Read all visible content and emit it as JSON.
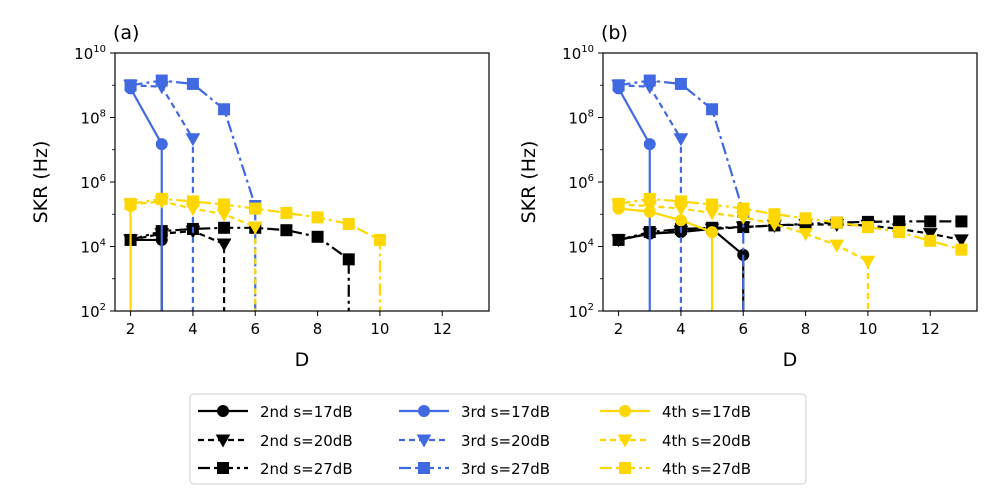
{
  "chart_data": {
    "type": "line",
    "xlabel": "D",
    "ylabel": "SKR (Hz)",
    "yscale": "log",
    "ylim": [
      100,
      10000000000
    ],
    "xlim": [
      1.5,
      13.5
    ],
    "xticks": [
      2,
      4,
      6,
      8,
      10,
      12
    ],
    "yticks": [
      {
        "base": "10",
        "exp": "2",
        "value": 100
      },
      {
        "base": "10",
        "exp": "4",
        "value": 10000
      },
      {
        "base": "10",
        "exp": "6",
        "value": 1000000
      },
      {
        "base": "10",
        "exp": "8",
        "value": 100000000
      },
      {
        "base": "10",
        "exp": "10",
        "value": 10000000000
      }
    ],
    "colors": {
      "2nd": "#000000",
      "3rd": "#4169e1",
      "4th": "#ffd700"
    },
    "styles": {
      "17dB": {
        "dash": "",
        "marker": "circle"
      },
      "20dB": {
        "dash": "6,4",
        "marker": "triangle-down"
      },
      "27dB": {
        "dash": "12,4,3,4",
        "marker": "square"
      }
    },
    "legend": {
      "placement": "bottom-center",
      "entries": [
        {
          "label": "2nd s=17dB",
          "color": "2nd",
          "style": "17dB"
        },
        {
          "label": "2nd s=20dB",
          "color": "2nd",
          "style": "20dB"
        },
        {
          "label": "2nd s=27dB",
          "color": "2nd",
          "style": "27dB"
        },
        {
          "label": "3rd s=17dB",
          "color": "3rd",
          "style": "17dB"
        },
        {
          "label": "3rd s=20dB",
          "color": "3rd",
          "style": "20dB"
        },
        {
          "label": "3rd s=27dB",
          "color": "3rd",
          "style": "27dB"
        },
        {
          "label": "4th s=17dB",
          "color": "4th",
          "style": "17dB"
        },
        {
          "label": "4th s=20dB",
          "color": "4th",
          "style": "20dB"
        },
        {
          "label": "4th s=27dB",
          "color": "4th",
          "style": "27dB"
        }
      ]
    },
    "panels": [
      {
        "label": "(a)",
        "series": [
          {
            "name": "2nd s=17dB",
            "color": "2nd",
            "style": "17dB",
            "x": [
              2,
              3
            ],
            "y": [
              16000,
              16000
            ],
            "drop_to_floor": true
          },
          {
            "name": "2nd s=20dB",
            "color": "2nd",
            "style": "20dB",
            "x": [
              2,
              3,
              4,
              5
            ],
            "y": [
              16000,
              25000,
              30000,
              12000
            ],
            "drop_to_floor": true
          },
          {
            "name": "2nd s=27dB",
            "color": "2nd",
            "style": "27dB",
            "x": [
              2,
              3,
              4,
              5,
              6,
              7,
              8,
              9
            ],
            "y": [
              16000,
              30000,
              35000,
              38000,
              38000,
              32000,
              20000,
              4000
            ],
            "drop_to_floor": true
          },
          {
            "name": "3rd s=17dB",
            "color": "3rd",
            "style": "17dB",
            "x": [
              2,
              3
            ],
            "y": [
              800000000,
              15000000
            ],
            "drop_to_floor": true
          },
          {
            "name": "3rd s=20dB",
            "color": "3rd",
            "style": "20dB",
            "x": [
              2,
              3,
              4
            ],
            "y": [
              1000000000,
              900000000,
              22000000
            ],
            "drop_to_floor": true
          },
          {
            "name": "3rd s=27dB",
            "color": "3rd",
            "style": "27dB",
            "x": [
              2,
              3,
              4,
              5,
              6
            ],
            "y": [
              1000000000,
              1400000000,
              1100000000,
              180000000,
              180000
            ],
            "drop_to_floor": true
          },
          {
            "name": "4th s=17dB",
            "color": "4th",
            "style": "17dB",
            "x": [
              2
            ],
            "y": [
              180000
            ],
            "drop_to_floor": true
          },
          {
            "name": "4th s=20dB",
            "color": "4th",
            "style": "20dB",
            "x": [
              2,
              3,
              4,
              5,
              6
            ],
            "y": [
              200000,
              250000,
              150000,
              100000,
              40000
            ],
            "drop_to_floor": true
          },
          {
            "name": "4th s=27dB",
            "color": "4th",
            "style": "27dB",
            "x": [
              2,
              3,
              4,
              5,
              6,
              7,
              8,
              9,
              10
            ],
            "y": [
              210000,
              300000,
              250000,
              200000,
              150000,
              110000,
              80000,
              50000,
              16000
            ],
            "drop_to_floor": true
          }
        ]
      },
      {
        "label": "(b)",
        "series": [
          {
            "name": "2nd s=17dB",
            "color": "2nd",
            "style": "17dB",
            "x": [
              2,
              3,
              4,
              5,
              6
            ],
            "y": [
              16000,
              25000,
              28000,
              35000,
              5500
            ],
            "drop_to_floor": true
          },
          {
            "name": "2nd s=20dB",
            "color": "2nd",
            "style": "20dB",
            "x": [
              2,
              3,
              4,
              5,
              6,
              7,
              8,
              9,
              10,
              11,
              12,
              13
            ],
            "y": [
              16000,
              25000,
              30000,
              35000,
              40000,
              45000,
              48000,
              48000,
              45000,
              35000,
              25000,
              16000
            ],
            "drop_to_floor": false
          },
          {
            "name": "2nd s=27dB",
            "color": "2nd",
            "style": "27dB",
            "x": [
              2,
              3,
              4,
              5,
              6,
              7,
              8,
              9,
              10,
              11,
              12,
              13
            ],
            "y": [
              16000,
              28000,
              35000,
              38000,
              40000,
              45000,
              50000,
              55000,
              58000,
              60000,
              60000,
              60000
            ],
            "drop_to_floor": false
          },
          {
            "name": "3rd s=17dB",
            "color": "3rd",
            "style": "17dB",
            "x": [
              2,
              3
            ],
            "y": [
              800000000,
              15000000
            ],
            "drop_to_floor": true
          },
          {
            "name": "3rd s=20dB",
            "color": "3rd",
            "style": "20dB",
            "x": [
              2,
              3,
              4
            ],
            "y": [
              1000000000,
              900000000,
              22000000
            ],
            "drop_to_floor": true
          },
          {
            "name": "3rd s=27dB",
            "color": "3rd",
            "style": "27dB",
            "x": [
              2,
              3,
              4,
              5,
              6
            ],
            "y": [
              1000000000,
              1400000000,
              1100000000,
              180000000,
              120000
            ],
            "drop_to_floor": true
          },
          {
            "name": "4th s=17dB",
            "color": "4th",
            "style": "17dB",
            "x": [
              2,
              3,
              4,
              5
            ],
            "y": [
              150000,
              120000,
              65000,
              28000
            ],
            "drop_to_floor": true
          },
          {
            "name": "4th s=20dB",
            "color": "4th",
            "style": "20dB",
            "x": [
              2,
              3,
              4,
              5,
              6,
              7,
              8,
              9,
              10
            ],
            "y": [
              200000,
              180000,
              150000,
              110000,
              80000,
              50000,
              25000,
              11000,
              3500
            ],
            "drop_to_floor": true
          },
          {
            "name": "4th s=27dB",
            "color": "4th",
            "style": "27dB",
            "x": [
              2,
              3,
              4,
              5,
              6,
              7,
              8,
              9,
              10,
              11,
              12,
              13
            ],
            "y": [
              210000,
              300000,
              250000,
              200000,
              150000,
              100000,
              75000,
              55000,
              40000,
              28000,
              15000,
              8000
            ],
            "drop_to_floor": false
          }
        ]
      }
    ]
  }
}
